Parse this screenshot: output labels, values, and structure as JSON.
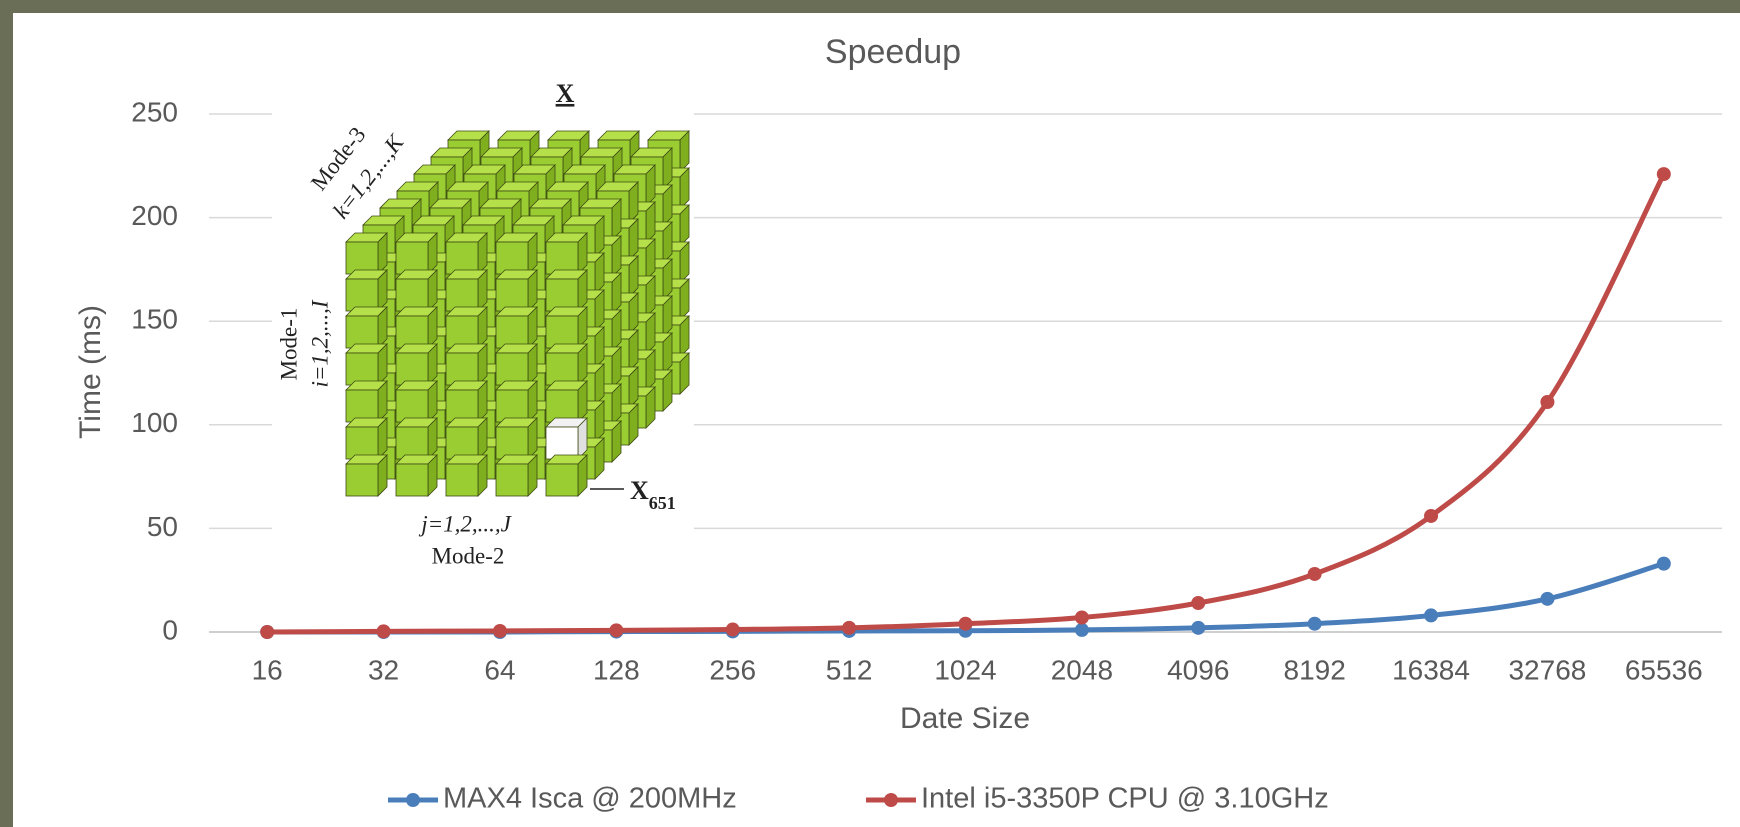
{
  "chart_data": {
    "type": "line",
    "title": "Speedup",
    "x_label": "Date Size",
    "y_label": "Time (ms)",
    "categories": [
      "16",
      "32",
      "64",
      "128",
      "256",
      "512",
      "1024",
      "2048",
      "4096",
      "8192",
      "16384",
      "32768",
      "65536"
    ],
    "series": [
      {
        "name": "MAX4 Isca @ 200MHz",
        "color": "#4a7ebb",
        "values": [
          0,
          0,
          0,
          0.2,
          0.3,
          0.5,
          0.6,
          1,
          2,
          4,
          8,
          16,
          33
        ]
      },
      {
        "name": "Intel i5-3350P CPU @ 3.10GHz",
        "color": "#be4b48",
        "values": [
          0,
          0.3,
          0.5,
          0.8,
          1.2,
          2,
          4,
          7,
          14,
          28,
          56,
          111,
          221
        ]
      }
    ],
    "ylim": [
      0,
      250
    ],
    "yticks": [
      0,
      50,
      100,
      150,
      200,
      250
    ],
    "grid": true,
    "legend": "bottom"
  },
  "inset": {
    "title": "X",
    "mode3": "Mode-3",
    "k_range": "k=1,2,...,K",
    "mode1": "Mode-1",
    "i_range": "i=1,2,...,I",
    "j_range": "j=1,2,...,J",
    "mode2": "Mode-2",
    "element": {
      "symbol": "X",
      "index": "651"
    }
  }
}
